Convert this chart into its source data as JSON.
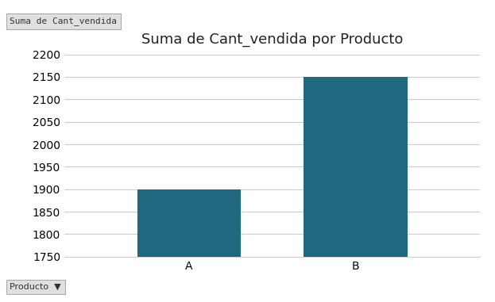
{
  "categories": [
    "A",
    "B"
  ],
  "values": [
    1900,
    2150
  ],
  "bar_color": "#1f6880",
  "title": "Suma de Cant_vendida por Producto",
  "title_fontsize": 13,
  "ylim": [
    1750,
    2200
  ],
  "yticks": [
    1750,
    1800,
    1850,
    1900,
    1950,
    2000,
    2050,
    2100,
    2150,
    2200
  ],
  "background_color": "#ffffff",
  "grid_color": "#cccccc",
  "legend_label": "Suma de Cant_vendida",
  "filter_label": "Producto",
  "tick_fontsize": 10,
  "bar_width": 0.25
}
